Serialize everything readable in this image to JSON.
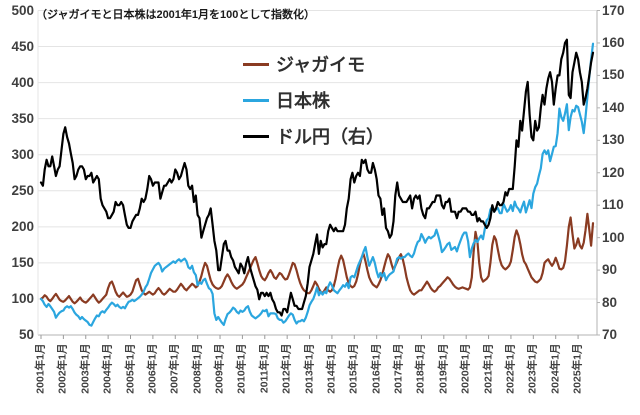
{
  "note": "（ジャガイモと日本株は2001年1月を100として指数化）",
  "chart_data": {
    "type": "line",
    "title": "",
    "x_start": "2001-01",
    "x_end": "2025-09",
    "interval": "monthly",
    "grid": "horizontal",
    "legend_position": "top-center",
    "x_tick_labels": [
      "2001年1月",
      "2002年1月",
      "2003年1月",
      "2004年1月",
      "2005年1月",
      "2006年1月",
      "2007年1月",
      "2008年1月",
      "2009年1月",
      "2010年1月",
      "2011年1月",
      "2012年1月",
      "2013年1月",
      "2014年1月",
      "2015年1月",
      "2016年1月",
      "2017年1月",
      "2018年1月",
      "2019年1月",
      "2020年1月",
      "2021年1月",
      "2022年1月",
      "2023年1月",
      "2024年1月",
      "2025年1月"
    ],
    "left_axis": {
      "min": 50,
      "max": 500,
      "ticks": [
        500,
        450,
        400,
        350,
        300,
        250,
        200,
        150,
        100,
        50
      ]
    },
    "right_axis": {
      "min": 70,
      "max": 170,
      "ticks": [
        170,
        160,
        150,
        140,
        130,
        120,
        110,
        100,
        90,
        80,
        70
      ]
    },
    "colors": {
      "grid": "#e4e4e4",
      "axis": "#b3b3b3",
      "tick_text": "#3f3f3f"
    },
    "series": [
      {
        "name": "ジャガイモ",
        "axis": "left",
        "color": "#8a3b22",
        "values": [
          100,
          102,
          105,
          103,
          99,
          97,
          100,
          104,
          107,
          103,
          99,
          97,
          96,
          98,
          101,
          104,
          100,
          96,
          94,
          96,
          99,
          102,
          98,
          96,
          95,
          97,
          100,
          103,
          106,
          102,
          98,
          95,
          97,
          100,
          103,
          106,
          115,
          122,
          124,
          118,
          110,
          105,
          103,
          106,
          109,
          106,
          103,
          104,
          106,
          110,
          118,
          126,
          128,
          120,
          112,
          108,
          106,
          108,
          110,
          108,
          106,
          108,
          112,
          115,
          112,
          108,
          106,
          108,
          111,
          114,
          112,
          110,
          110,
          113,
          117,
          121,
          118,
          114,
          112,
          115,
          118,
          121,
          119,
          116,
          118,
          124,
          132,
          142,
          150,
          146,
          136,
          126,
          120,
          117,
          115,
          114,
          115,
          118,
          124,
          130,
          134,
          130,
          124,
          119,
          116,
          114,
          116,
          118,
          120,
          124,
          130,
          136,
          142,
          148,
          154,
          158,
          150,
          140,
          132,
          128,
          126,
          130,
          136,
          140,
          136,
          130,
          128,
          132,
          136,
          134,
          130,
          127,
          128,
          134,
          142,
          150,
          148,
          140,
          130,
          122,
          116,
          112,
          110,
          108,
          108,
          112,
          118,
          124,
          120,
          114,
          110,
          108,
          112,
          116,
          112,
          110,
          112,
          118,
          128,
          142,
          154,
          160,
          154,
          142,
          130,
          122,
          118,
          116,
          118,
          124,
          134,
          148,
          158,
          162,
          152,
          140,
          130,
          124,
          120,
          118,
          116,
          120,
          126,
          134,
          144,
          154,
          162,
          158,
          148,
          140,
          146,
          152,
          158,
          162,
          155,
          144,
          130,
          120,
          112,
          108,
          106,
          108,
          110,
          112,
          112,
          116,
          120,
          124,
          120,
          115,
          112,
          110,
          112,
          116,
          118,
          121,
          124,
          127,
          130,
          128,
          124,
          120,
          117,
          115,
          114,
          115,
          116,
          115,
          114,
          113,
          116,
          130,
          165,
          193,
          180,
          150,
          130,
          124,
          126,
          128,
          132,
          150,
          175,
          187,
          182,
          168,
          155,
          147,
          143,
          141,
          143,
          146,
          152,
          168,
          186,
          195,
          188,
          176,
          162,
          152,
          148,
          142,
          136,
          130,
          127,
          124,
          123,
          125,
          128,
          136,
          150,
          153,
          155,
          150,
          146,
          150,
          157,
          150,
          142,
          141,
          143,
          152,
          174,
          200,
          213,
          190,
          170,
          175,
          184,
          174,
          170,
          178,
          195,
          218,
          196,
          174,
          205
        ]
      },
      {
        "name": "日本株",
        "axis": "left",
        "color": "#2ba6df",
        "values": [
          100,
          97,
          92,
          89,
          93,
          90,
          86,
          82,
          74,
          78,
          81,
          83,
          84,
          88,
          90,
          88,
          90,
          86,
          81,
          78,
          76,
          72,
          75,
          72,
          70,
          68,
          64,
          63,
          68,
          73,
          77,
          76,
          81,
          83,
          81,
          85,
          88,
          92,
          95,
          93,
          90,
          92,
          89,
          87,
          89,
          87,
          92,
          96,
          97,
          99,
          97,
          99,
          101,
          103,
          106,
          110,
          116,
          120,
          128,
          136,
          141,
          146,
          148,
          150,
          146,
          138,
          142,
          144,
          146,
          148,
          150,
          152,
          150,
          153,
          155,
          152,
          154,
          156,
          152,
          144,
          142,
          146,
          137,
          133,
          119,
          123,
          121,
          126,
          128,
          121,
          115,
          113,
          107,
          80,
          71,
          75,
          71,
          67,
          64,
          72,
          79,
          81,
          84,
          88,
          86,
          82,
          80,
          84,
          82,
          84,
          88,
          90,
          82,
          77,
          75,
          73,
          75,
          77,
          80,
          84,
          83,
          85,
          76,
          80,
          80,
          80,
          79,
          73,
          71,
          71,
          67,
          69,
          73,
          77,
          80,
          78,
          71,
          66,
          69,
          69,
          71,
          69,
          74,
          82,
          91,
          96,
          100,
          107,
          116,
          105,
          110,
          106,
          110,
          108,
          117,
          123,
          119,
          112,
          110,
          108,
          112,
          115,
          119,
          117,
          122,
          115,
          130,
          132,
          130,
          138,
          146,
          152,
          158,
          166,
          172,
          158,
          146,
          152,
          158,
          150,
          138,
          130,
          136,
          131,
          136,
          126,
          131,
          134,
          136,
          138,
          147,
          156,
          158,
          156,
          158,
          158,
          161,
          163,
          160,
          158,
          163,
          172,
          179,
          181,
          190,
          185,
          178,
          183,
          186,
          184,
          186,
          188,
          196,
          188,
          178,
          165,
          168,
          172,
          176,
          178,
          168,
          170,
          172,
          166,
          174,
          181,
          188,
          192,
          192,
          180,
          158,
          170,
          177,
          182,
          179,
          184,
          188,
          183,
          197,
          209,
          212,
          224,
          228,
          221,
          224,
          226,
          219,
          219,
          232,
          226,
          221,
          224,
          230,
          222,
          235,
          228,
          225,
          220,
          228,
          235,
          220,
          228,
          237,
          226,
          246,
          255,
          260,
          271,
          281,
          301,
          306,
          301,
          306,
          291,
          301,
          311,
          312,
          330,
          364,
          352,
          347,
          357,
          370,
          334,
          352,
          362,
          360,
          368,
          366,
          356,
          346,
          330,
          352,
          380,
          408,
          432,
          454
        ]
      },
      {
        "name": "ドル円（右）",
        "axis": "right",
        "color": "#000000",
        "values": [
          117,
          116,
          121,
          124,
          122,
          122,
          125,
          122,
          119,
          121,
          122,
          127,
          132,
          134,
          131,
          129,
          126,
          123,
          118,
          119,
          121,
          122,
          122,
          121,
          118,
          119,
          119,
          120,
          117,
          118,
          119,
          118,
          112,
          110,
          109,
          108,
          106,
          106,
          107,
          108,
          111,
          110,
          110,
          111,
          110,
          107,
          104,
          103,
          103,
          105,
          106,
          107,
          107,
          109,
          112,
          111,
          112,
          115,
          119,
          118,
          116,
          117,
          117,
          117,
          112,
          114,
          116,
          116,
          117,
          118,
          117,
          118,
          121,
          120,
          118,
          119,
          121,
          123,
          121,
          116,
          115,
          116,
          111,
          113,
          107,
          106,
          100,
          102,
          104,
          106,
          107,
          109,
          104,
          99,
          96,
          90,
          90,
          94,
          98,
          99,
          96,
          96,
          94,
          93,
          91,
          90,
          89,
          92,
          91,
          89,
          92,
          94,
          91,
          89,
          87,
          85,
          84,
          81,
          83,
          83,
          82,
          83,
          82,
          83,
          81,
          80,
          78,
          77,
          77,
          76,
          78,
          78,
          77,
          80,
          83,
          81,
          79,
          79,
          78,
          78,
          78,
          80,
          82,
          86,
          91,
          93,
          95,
          98,
          101,
          95,
          99,
          97,
          98,
          98,
          102,
          104,
          103,
          102,
          103,
          102,
          102,
          102,
          102,
          104,
          109,
          112,
          118,
          120,
          117,
          119,
          120,
          119,
          124,
          123,
          124,
          121,
          120,
          120,
          123,
          121,
          118,
          113,
          112,
          107,
          109,
          103,
          102,
          100,
          101,
          105,
          113,
          117,
          113,
          112,
          111,
          111,
          111,
          112,
          113,
          109,
          112,
          113,
          112,
          113,
          109,
          107,
          106,
          109,
          109,
          110,
          111,
          111,
          113,
          113,
          113,
          110,
          109,
          111,
          111,
          112,
          108,
          108,
          108,
          106,
          108,
          108,
          109,
          109,
          109,
          108,
          108,
          107,
          107,
          108,
          105,
          106,
          105,
          105,
          104,
          103,
          104,
          106,
          110,
          108,
          109,
          111,
          110,
          110,
          111,
          114,
          113,
          115,
          115,
          115,
          122,
          130,
          128,
          136,
          133,
          139,
          145,
          148,
          138,
          131,
          130,
          136,
          133,
          134,
          140,
          144,
          141,
          146,
          149,
          151,
          148,
          141,
          146,
          150,
          150,
          155,
          157,
          160,
          161,
          144,
          143,
          151,
          154,
          157,
          155,
          151,
          148,
          141,
          143,
          146,
          150,
          154,
          157
        ]
      }
    ]
  }
}
